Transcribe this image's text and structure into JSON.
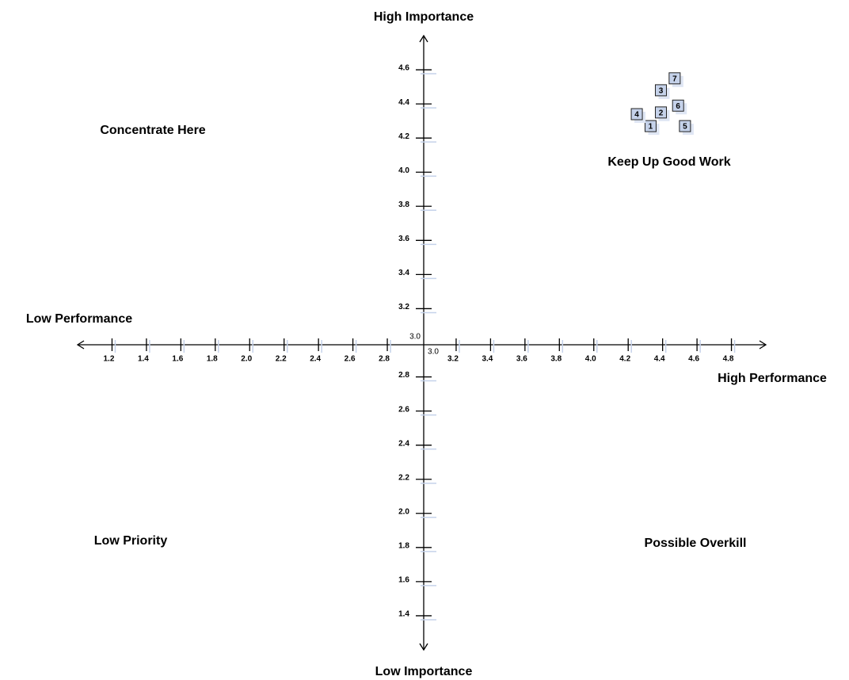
{
  "chart_data": {
    "type": "scatter",
    "y_axis_top": "High Importance",
    "y_axis_bottom": "Low Importance",
    "x_axis_left": "Low Performance",
    "x_axis_right": "High Performance",
    "quadrant_top_left": "Concentrate Here",
    "quadrant_top_right": "Keep Up Good Work",
    "quadrant_bottom_left": "Low Priority",
    "quadrant_bottom_right": "Possible Overkill",
    "labels": [
      "1",
      "2",
      "3",
      "4",
      "5",
      "6",
      "7"
    ],
    "x": [
      4.33,
      4.39,
      4.39,
      4.25,
      4.53,
      4.49,
      4.47
    ],
    "y": [
      4.27,
      4.35,
      4.48,
      4.34,
      4.27,
      4.39,
      4.55
    ],
    "color": "#c5d2ea",
    "xlim": [
      1.0,
      5.0
    ],
    "ylim": [
      1.2,
      4.8
    ],
    "xticks": [
      1.2,
      1.4,
      1.6,
      1.8,
      {
        "value": 2,
        "label": "2.0"
      },
      2.2,
      2.4,
      2.6,
      2.8,
      {
        "value": 3,
        "label": "3.0"
      },
      3.2,
      3.4,
      3.6,
      3.8,
      {
        "value": 4,
        "label": "4.0"
      },
      4.2,
      4.4,
      4.6,
      4.8
    ],
    "yticks": [
      1.4,
      1.6,
      1.8,
      {
        "value": 2,
        "label": "2.0"
      },
      2.2,
      2.4,
      2.6,
      2.8,
      {
        "value": 3,
        "label": "3.0"
      },
      3.2,
      3.4,
      3.6,
      3.8,
      {
        "value": 4,
        "label": "4.0"
      },
      4.2,
      4.4,
      4.6
    ]
  }
}
